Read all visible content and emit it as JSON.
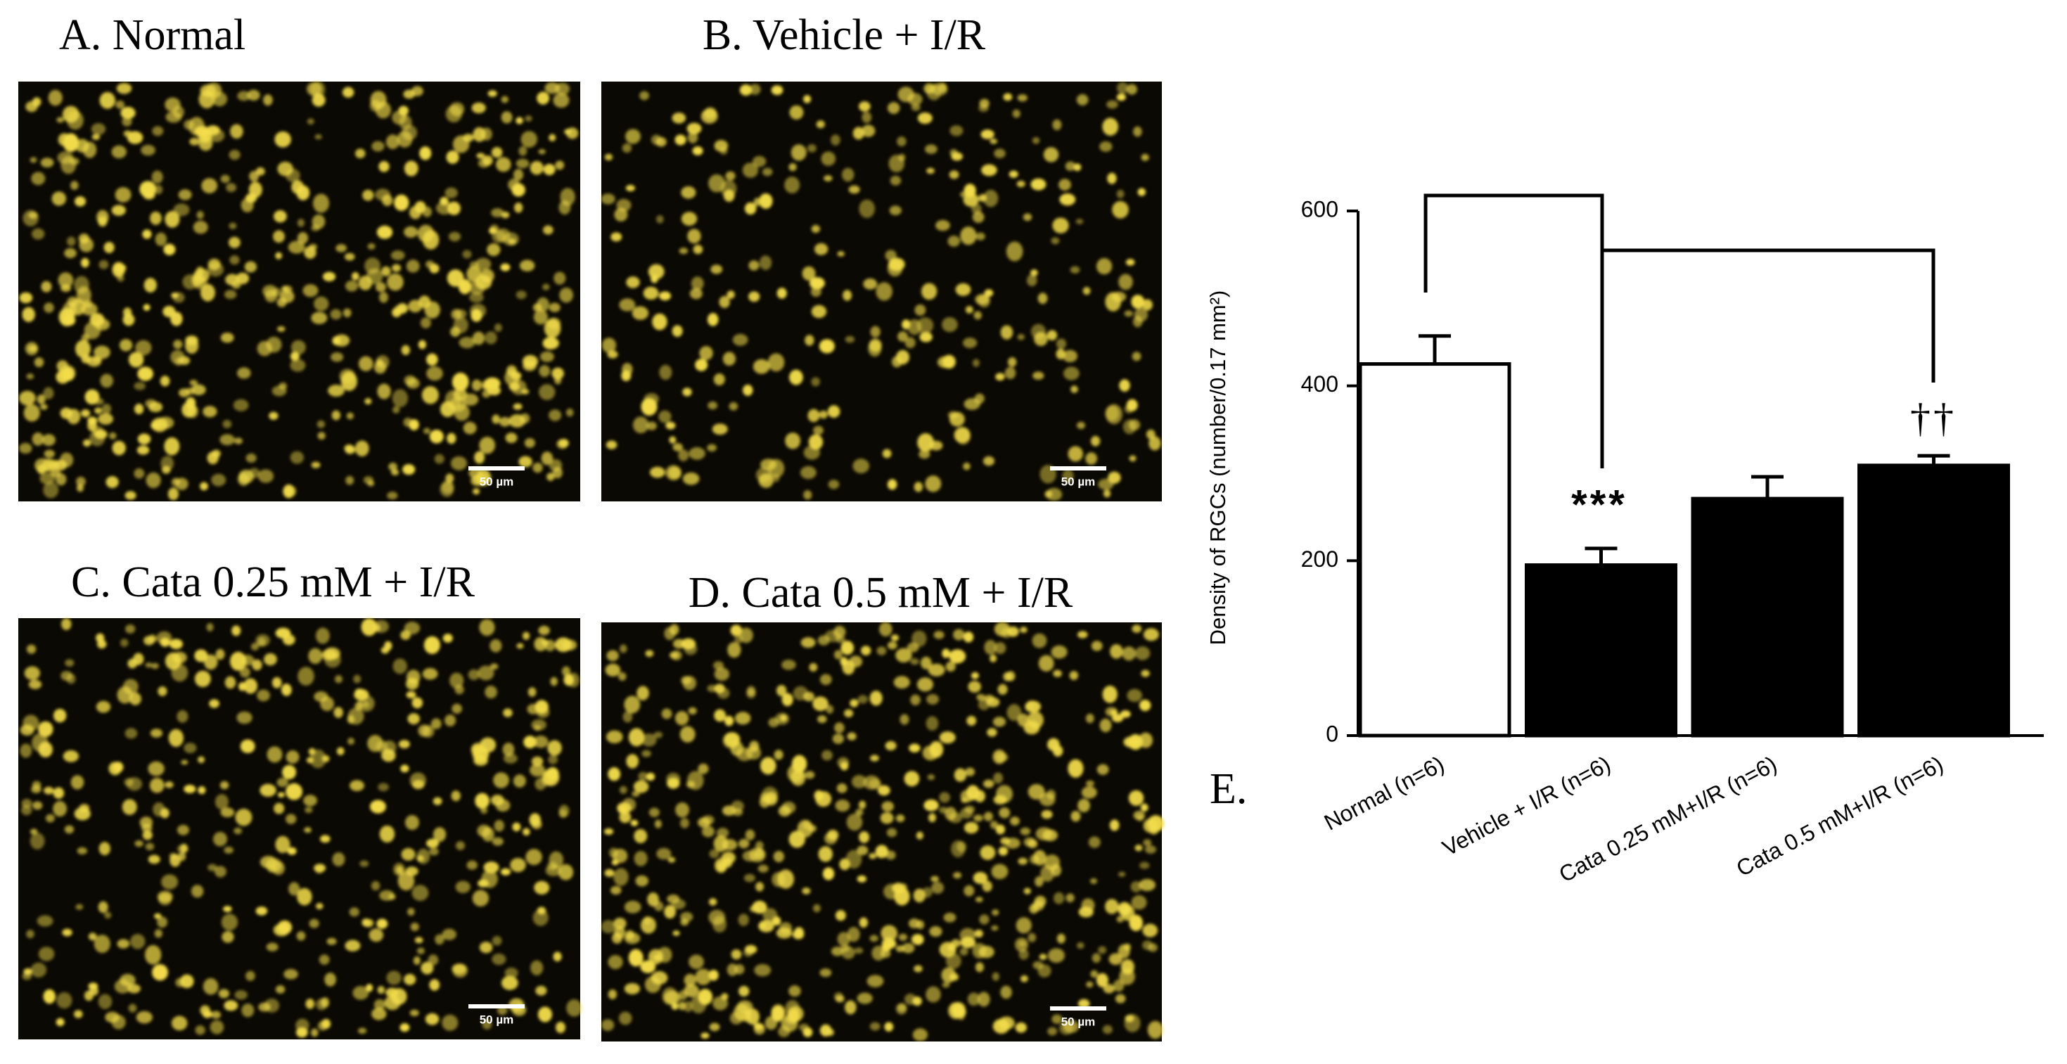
{
  "panels": [
    {
      "label": "A. Normal",
      "scale_bar": "50 µm"
    },
    {
      "label": "B. Vehicle + I/R",
      "scale_bar": "50 µm"
    },
    {
      "label": "C. Cata 0.25 mM + I/R",
      "scale_bar": "50 µm"
    },
    {
      "label": "D. Cata 0.5 mM + I/R",
      "scale_bar": "50 µm"
    }
  ],
  "chart_data": {
    "type": "bar",
    "panel_label": "E.",
    "ylabel": "Density of RGCs (number/0.17 mm²)",
    "categories": [
      "Normal (n=6)",
      "Vehicle + I/R (n=6)",
      "Cata 0.25 mM+I/R (n=6)",
      "Cata 0.5 mM+I/R (n=6)"
    ],
    "values": [
      425,
      195,
      271,
      309
    ],
    "errors": [
      32,
      19,
      25,
      11
    ],
    "colors": [
      "#ffffff",
      "#000000",
      "#000000",
      "#000000"
    ],
    "ylim": [
      0,
      600
    ],
    "yticks": [
      0,
      200,
      400,
      600
    ],
    "annotations": [
      "***",
      "††"
    ]
  }
}
